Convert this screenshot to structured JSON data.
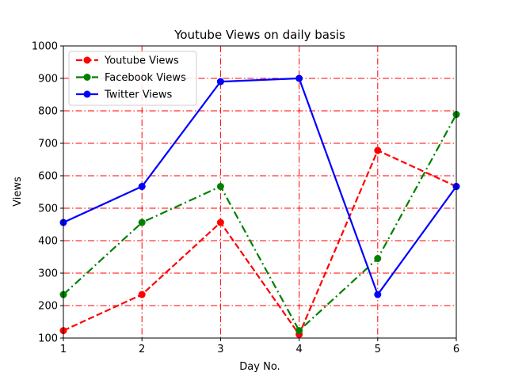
{
  "chart_data": {
    "type": "line",
    "title": "Youtube Views on daily basis",
    "xlabel": "Day No.",
    "ylabel": "Views",
    "x": [
      1,
      2,
      3,
      4,
      5,
      6
    ],
    "xlim": [
      1,
      6
    ],
    "ylim": [
      100,
      1000
    ],
    "xticks": [
      1,
      2,
      3,
      4,
      5,
      6
    ],
    "yticks": [
      100,
      200,
      300,
      400,
      500,
      600,
      700,
      800,
      900,
      1000
    ],
    "grid": true,
    "grid_color": "#ff0000",
    "legend_position": "upper-left",
    "series": [
      {
        "name": "Youtube Views",
        "values": [
          123,
          234,
          456,
          111,
          678,
          567
        ],
        "color": "#ff0000",
        "linestyle": "dashed",
        "marker": "circle"
      },
      {
        "name": "Facebook Views",
        "values": [
          234,
          456,
          567,
          123,
          345,
          789
        ],
        "color": "#008000",
        "linestyle": "dashdot",
        "marker": "circle"
      },
      {
        "name": "Twitter Views",
        "values": [
          456,
          567,
          890,
          900,
          234,
          567
        ],
        "color": "#0000ff",
        "linestyle": "solid",
        "marker": "circle"
      }
    ]
  }
}
